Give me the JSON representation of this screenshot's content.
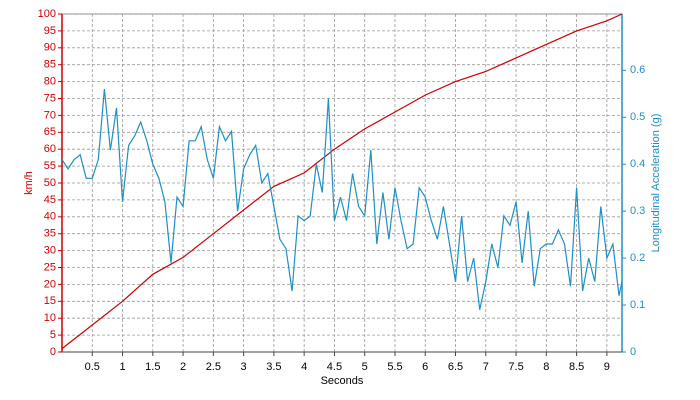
{
  "chart_data": {
    "type": "line",
    "xlabel": "Seconds",
    "ylabel": "km/h",
    "y2label": "Longitudinal Acceleration (g)",
    "xlim": [
      0,
      9.25
    ],
    "xticks": [
      0.5,
      1,
      1.5,
      2,
      2.5,
      3,
      3.5,
      4,
      4.5,
      5,
      5.5,
      6,
      6.5,
      7,
      7.5,
      8,
      8.5,
      9
    ],
    "ylim": [
      0,
      100
    ],
    "yticks": [
      0,
      5,
      10,
      15,
      20,
      25,
      30,
      35,
      40,
      45,
      50,
      55,
      60,
      65,
      70,
      75,
      80,
      85,
      90,
      95,
      100
    ],
    "y2lim": [
      0,
      0.72
    ],
    "y2ticks": [
      0,
      0.1,
      0.2,
      0.3,
      0.4,
      0.5,
      0.6
    ],
    "grid": true,
    "series": [
      {
        "color": "#cc0000",
        "x": [
          0,
          0.5,
          1,
          1.5,
          2,
          2.5,
          3,
          3.5,
          4,
          4.5,
          5,
          5.5,
          6,
          6.5,
          7,
          7.5,
          8,
          8.5,
          9,
          9.25
        ],
        "values": [
          1,
          8,
          15,
          23,
          28,
          35,
          42,
          49,
          53,
          60,
          66,
          71,
          76,
          80,
          83,
          87,
          91,
          95,
          98,
          100
        ]
      },
      {
        "color": "#1f8fc4",
        "axis": "y2",
        "x": [
          0,
          0.1,
          0.2,
          0.3,
          0.4,
          0.5,
          0.6,
          0.7,
          0.8,
          0.9,
          1,
          1.1,
          1.2,
          1.3,
          1.4,
          1.5,
          1.6,
          1.7,
          1.8,
          1.9,
          2,
          2.1,
          2.2,
          2.3,
          2.4,
          2.5,
          2.6,
          2.7,
          2.8,
          2.9,
          3,
          3.1,
          3.2,
          3.3,
          3.4,
          3.5,
          3.6,
          3.7,
          3.8,
          3.9,
          4,
          4.1,
          4.2,
          4.3,
          4.4,
          4.5,
          4.6,
          4.7,
          4.8,
          4.9,
          5,
          5.1,
          5.2,
          5.3,
          5.4,
          5.5,
          5.6,
          5.7,
          5.8,
          5.9,
          6,
          6.1,
          6.2,
          6.3,
          6.4,
          6.5,
          6.6,
          6.7,
          6.8,
          6.9,
          7,
          7.1,
          7.2,
          7.3,
          7.4,
          7.5,
          7.6,
          7.7,
          7.8,
          7.9,
          8,
          8.1,
          8.2,
          8.3,
          8.4,
          8.5,
          8.6,
          8.7,
          8.8,
          8.9,
          9,
          9.1,
          9.2,
          9.25
        ],
        "values": [
          0.41,
          0.39,
          0.41,
          0.42,
          0.37,
          0.37,
          0.41,
          0.56,
          0.43,
          0.52,
          0.32,
          0.44,
          0.46,
          0.49,
          0.45,
          0.4,
          0.37,
          0.32,
          0.19,
          0.33,
          0.31,
          0.45,
          0.45,
          0.48,
          0.41,
          0.37,
          0.48,
          0.45,
          0.47,
          0.3,
          0.39,
          0.42,
          0.44,
          0.36,
          0.38,
          0.31,
          0.24,
          0.22,
          0.13,
          0.29,
          0.28,
          0.29,
          0.4,
          0.34,
          0.54,
          0.28,
          0.33,
          0.28,
          0.38,
          0.31,
          0.29,
          0.43,
          0.23,
          0.34,
          0.24,
          0.35,
          0.28,
          0.22,
          0.23,
          0.35,
          0.33,
          0.28,
          0.24,
          0.31,
          0.23,
          0.15,
          0.29,
          0.15,
          0.2,
          0.09,
          0.15,
          0.23,
          0.18,
          0.29,
          0.27,
          0.32,
          0.19,
          0.3,
          0.14,
          0.22,
          0.23,
          0.23,
          0.26,
          0.23,
          0.14,
          0.35,
          0.13,
          0.2,
          0.15,
          0.31,
          0.2,
          0.23,
          0.12,
          0.15
        ]
      }
    ]
  }
}
